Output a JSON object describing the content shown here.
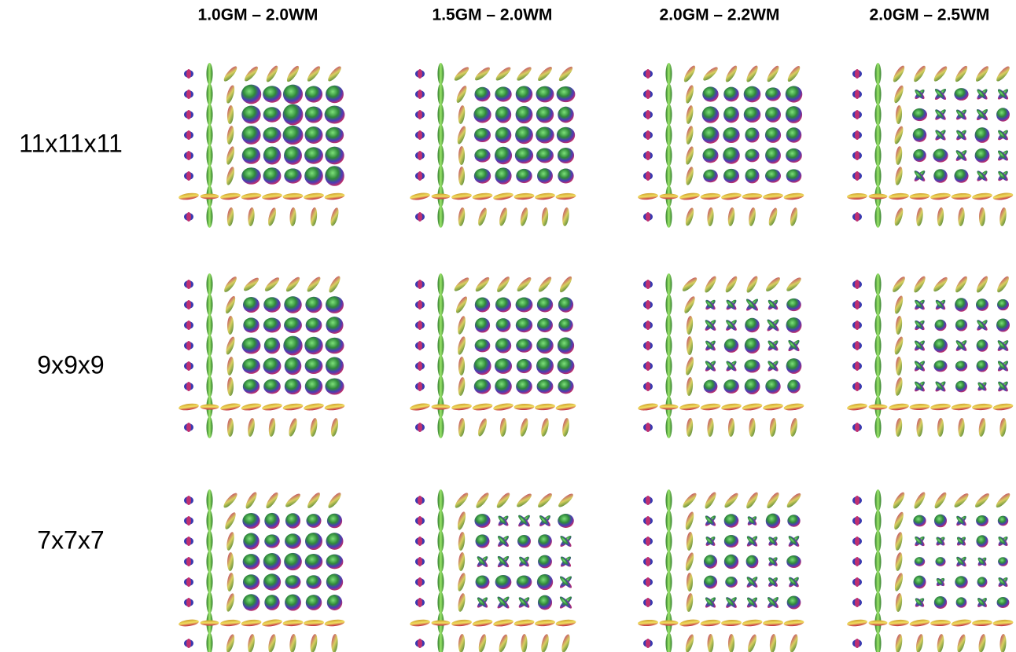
{
  "columns": [
    "1.0GM – 2.0WM",
    "1.5GM – 2.0WM",
    "2.0GM – 2.2WM",
    "2.0GM – 2.5WM"
  ],
  "rows": [
    "11x11x11",
    "9x9x9",
    "7x7x7"
  ]
}
